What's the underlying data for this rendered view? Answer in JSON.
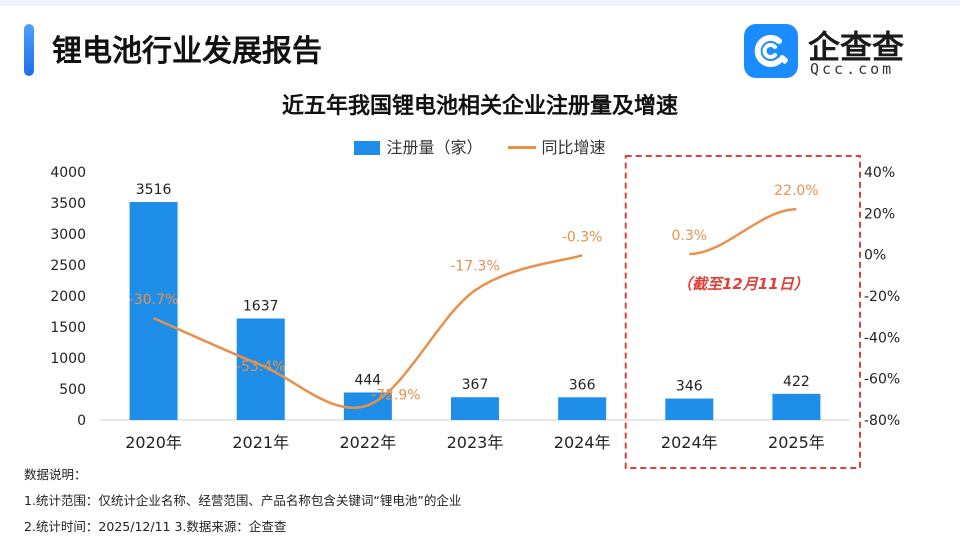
{
  "header": {
    "title": "锂电池行业发展报告"
  },
  "logo": {
    "name": "企查查",
    "url": "Qcc.com",
    "icon": "qcc-logo-icon"
  },
  "colors": {
    "bar": "#1f8ee8",
    "line": "#e8914a",
    "highlight_border": "#e0403a",
    "note_text": "#e0403a",
    "accent": "#1e6fe6"
  },
  "chart_data": {
    "type": "bar",
    "title": "近五年我国锂电池相关企业注册量及增速",
    "categories": [
      "2020年",
      "2021年",
      "2022年",
      "2023年",
      "2024年",
      "2024年",
      "2025年"
    ],
    "series": [
      {
        "name": "注册量（家）",
        "type": "bar",
        "axis": "left",
        "values": [
          3516,
          1637,
          444,
          367,
          366,
          346,
          422
        ],
        "labels": [
          "3516",
          "1637",
          "444",
          "367",
          "366",
          "346",
          "422"
        ]
      },
      {
        "name": "同比增速",
        "type": "line",
        "axis": "right",
        "unit": "%",
        "segments": [
          {
            "points": [
              [
                0,
                -30.7
              ],
              [
                1,
                -53.4
              ],
              [
                2,
                -72.9
              ],
              [
                3,
                -17.3
              ],
              [
                4,
                -0.3
              ]
            ]
          },
          {
            "points": [
              [
                5,
                0.3
              ],
              [
                6,
                22.0
              ]
            ]
          }
        ],
        "labels": [
          "-30.7%",
          "-53.4%",
          "-72.9%",
          "-17.3%",
          "-0.3%",
          "0.3%",
          "22.0%"
        ]
      }
    ],
    "y_left": {
      "min": 0,
      "max": 4000,
      "ticks": [
        "0",
        "500",
        "1000",
        "1500",
        "2000",
        "2500",
        "3000",
        "3500",
        "4000"
      ]
    },
    "y_right": {
      "min": -80,
      "max": 40,
      "ticks": [
        "-80%",
        "-60%",
        "-40%",
        "-20%",
        "0%",
        "20%",
        "40%"
      ]
    },
    "highlight": {
      "from_category": 5,
      "to_category": 6,
      "note": "（截至12月11日）"
    },
    "grid": false,
    "legend_position": "top-center"
  },
  "notes": {
    "heading": "数据说明：",
    "line1": "1.统计范围：仅统计企业名称、经营范围、产品名称包含关键词“锂电池”的企业",
    "line2": "2.统计时间：2025/12/11      3.数据来源：企查查"
  }
}
